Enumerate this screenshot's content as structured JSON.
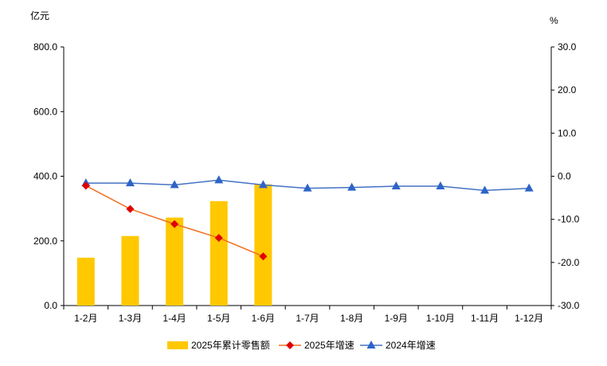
{
  "chart_data": {
    "type": "bar+line",
    "categories": [
      "1-2月",
      "1-3月",
      "1-4月",
      "1-5月",
      "1-6月",
      "1-7月",
      "1-8月",
      "1-9月",
      "1-10月",
      "1-11月",
      "1-12月"
    ],
    "left_axis": {
      "unit": "亿元",
      "ylim": [
        0,
        800
      ],
      "ticks": [
        "0.0",
        "200.0",
        "400.0",
        "600.0",
        "800.0"
      ]
    },
    "right_axis": {
      "unit": "%",
      "ylim": [
        -30,
        30
      ],
      "ticks": [
        "-30.0",
        "-20.0",
        "-10.0",
        "0.0",
        "10.0",
        "20.0",
        "30.0"
      ]
    },
    "grid": false,
    "legend_position": "bottom",
    "series": [
      {
        "name": "2025年累计零售额",
        "type": "bar",
        "axis": "left",
        "color": "#FFC800",
        "values": [
          148,
          215,
          272,
          323,
          375,
          null,
          null,
          null,
          null,
          null,
          null
        ]
      },
      {
        "name": "2025年增速",
        "type": "line",
        "axis": "right",
        "color": "#F07020",
        "marker_color": "#E00000",
        "marker": "diamond",
        "values": [
          -2.2,
          -7.6,
          -11.1,
          -14.3,
          -18.6,
          null,
          null,
          null,
          null,
          null,
          null
        ]
      },
      {
        "name": "2024年增速",
        "type": "line",
        "axis": "right",
        "color": "#4472C4",
        "marker_color": "#2E64C8",
        "marker": "triangle",
        "values": [
          -1.6,
          -1.6,
          -2.0,
          -0.9,
          -2.0,
          -2.8,
          -2.6,
          -2.3,
          -2.3,
          -3.3,
          -2.8
        ]
      }
    ]
  }
}
